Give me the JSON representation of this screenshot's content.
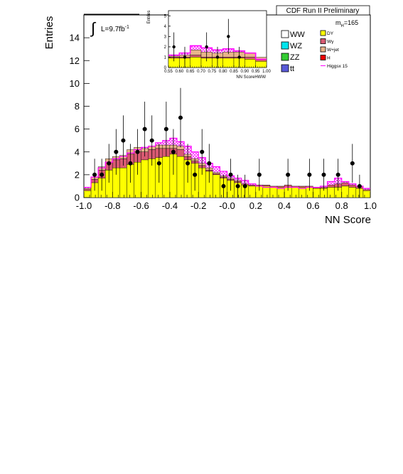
{
  "main_plot": {
    "title": "CDF Run II Preliminary",
    "lumi": "L=9.7fb",
    "lumi_sup": "-1",
    "mass": "m",
    "mass_sub": "H",
    "mass_val": "=165"
  },
  "legend": {
    "items": [
      {
        "label": "WW",
        "color": "#ffffff",
        "col": 0
      },
      {
        "label": "WZ",
        "color": "#00e6ee",
        "col": 0
      },
      {
        "label": "ZZ",
        "color": "#33cc33",
        "col": 0
      },
      {
        "label": "tt",
        "color": "#5a5ad8",
        "col": 0
      },
      {
        "label": "DY",
        "color": "#ffff00",
        "col": 1
      },
      {
        "label": "Wγ",
        "color": "#d85a72",
        "col": 1
      },
      {
        "label": "W+jet",
        "color": "#e8b48a",
        "col": 1
      },
      {
        "label": "H",
        "color": "#ee0000",
        "col": 1
      },
      {
        "label": "Higgsx 15",
        "color": "#ff00ff",
        "col": 1,
        "line": true
      }
    ]
  },
  "colors": {
    "dy": "#ffff00",
    "wgamma": "#d85a72",
    "wjet": "#e8b48a",
    "signal": "#ff00ff",
    "data": "#000000"
  },
  "chart_data": [
    {
      "type": "bar",
      "title": "CDF Run II Preliminary",
      "xlabel": "NN Score",
      "ylabel": "Entries",
      "xlim": [
        -1.0,
        1.0
      ],
      "ylim": [
        0,
        16
      ],
      "xticks": [
        "-1.0",
        "-0.8",
        "-0.6",
        "-0.4",
        "-0.2",
        "-0.0",
        "0.2",
        "0.4",
        "0.6",
        "0.8",
        "1.0"
      ],
      "yticks": [
        "0",
        "2",
        "4",
        "6",
        "8",
        "10",
        "12",
        "14"
      ],
      "bin_edges_start": -1.0,
      "bin_width": 0.05,
      "series": [
        {
          "name": "DY",
          "values": [
            0.6,
            1.3,
            1.7,
            2.4,
            2.6,
            2.6,
            2.9,
            3.1,
            3.3,
            3.4,
            3.5,
            3.6,
            3.8,
            3.6,
            3.3,
            3.0,
            2.6,
            2.3,
            2.0,
            1.7,
            1.5,
            1.3,
            1.1,
            1.0,
            1.0,
            1.0,
            0.9,
            0.9,
            0.9,
            0.9,
            0.9,
            0.9,
            0.8,
            0.8,
            0.9,
            0.9,
            1.0,
            0.9,
            0.8,
            0.6
          ]
        },
        {
          "name": "Wγ",
          "values": [
            0.1,
            0.3,
            0.7,
            0.7,
            0.7,
            0.8,
            0.9,
            0.9,
            0.7,
            0.8,
            0.8,
            0.7,
            0.5,
            0.6,
            0.3,
            0.2,
            0.2,
            0.1,
            0.1,
            0.1,
            0.1,
            0.1,
            0.1,
            0.1,
            0.1,
            0.1,
            0.1,
            0.1,
            0.2,
            0.1,
            0.1,
            0.1,
            0.1,
            0.1,
            0.2,
            0.3,
            0.3,
            0.2,
            0.2,
            0.1
          ]
        },
        {
          "name": "W+jet",
          "values": [
            0.1,
            0.2,
            0.3,
            0.3,
            0.3,
            0.3,
            0.4,
            0.4,
            0.3,
            0.3,
            0.3,
            0.3,
            0.3,
            0.3,
            0.2,
            0.2,
            0.2,
            0.2,
            0.1,
            0.1,
            0.1,
            0.1,
            0.0,
            0.0,
            0.0,
            0.0,
            0.0,
            0.0,
            0.0,
            0.0,
            0.0,
            0.0,
            0.0,
            0.0,
            0.0,
            0.0,
            0.0,
            0.0,
            0.0,
            0.0
          ]
        },
        {
          "name": "Higgsx 15",
          "values": [
            0.9,
            1.8,
            2.6,
            3.1,
            3.4,
            3.6,
            3.9,
            4.2,
            4.4,
            4.5,
            4.8,
            5.0,
            5.2,
            4.9,
            4.5,
            4.0,
            3.5,
            3.0,
            2.7,
            2.3,
            1.9,
            1.7,
            1.5,
            1.2,
            1.0,
            0.9,
            0.9,
            0.8,
            0.9,
            0.9,
            0.8,
            0.9,
            0.9,
            1.0,
            1.4,
            1.7,
            1.4,
            1.2,
            1.0,
            0.8
          ]
        }
      ],
      "data_points": [
        {
          "x": -0.925,
          "y": 2,
          "err": 1.4
        },
        {
          "x": -0.875,
          "y": 2,
          "err": 1.4
        },
        {
          "x": -0.825,
          "y": 3,
          "err": 1.7
        },
        {
          "x": -0.775,
          "y": 4,
          "err": 2.0
        },
        {
          "x": -0.725,
          "y": 5,
          "err": 2.2
        },
        {
          "x": -0.675,
          "y": 3,
          "err": 1.7
        },
        {
          "x": -0.625,
          "y": 4,
          "err": 2.0
        },
        {
          "x": -0.575,
          "y": 6,
          "err": 2.4
        },
        {
          "x": -0.525,
          "y": 5,
          "err": 2.2
        },
        {
          "x": -0.475,
          "y": 3,
          "err": 1.7
        },
        {
          "x": -0.425,
          "y": 6,
          "err": 2.4
        },
        {
          "x": -0.375,
          "y": 4,
          "err": 2.0
        },
        {
          "x": -0.325,
          "y": 7,
          "err": 2.6
        },
        {
          "x": -0.275,
          "y": 3,
          "err": 1.7
        },
        {
          "x": -0.225,
          "y": 2,
          "err": 1.4
        },
        {
          "x": -0.175,
          "y": 4,
          "err": 2.0
        },
        {
          "x": -0.125,
          "y": 3,
          "err": 1.7
        },
        {
          "x": -0.025,
          "y": 1,
          "err": 1.0
        },
        {
          "x": 0.025,
          "y": 2,
          "err": 1.4
        },
        {
          "x": 0.075,
          "y": 1,
          "err": 1.0
        },
        {
          "x": 0.125,
          "y": 1,
          "err": 1.0
        },
        {
          "x": 0.225,
          "y": 2,
          "err": 1.4
        },
        {
          "x": 0.425,
          "y": 2,
          "err": 1.4
        },
        {
          "x": 0.575,
          "y": 2,
          "err": 1.4
        },
        {
          "x": 0.675,
          "y": 2,
          "err": 1.4
        },
        {
          "x": 0.775,
          "y": 2,
          "err": 1.4
        },
        {
          "x": 0.875,
          "y": 3,
          "err": 1.7
        },
        {
          "x": 0.925,
          "y": 1,
          "err": 1.0
        }
      ]
    },
    {
      "type": "bar",
      "title": "",
      "xlabel": "NN ScoreHWW",
      "ylabel": "Entries",
      "xlim": [
        0.55,
        1.0
      ],
      "ylim": [
        0,
        5.5
      ],
      "xticks": [
        "0.55",
        "0.60",
        "0.65",
        "0.70",
        "0.75",
        "0.80",
        "0.85",
        "0.90",
        "0.95",
        "1.00"
      ],
      "yticks": [
        "0",
        "1",
        "2",
        "3",
        "4",
        "5"
      ],
      "bin_edges_start": 0.55,
      "bin_width": 0.05,
      "series": [
        {
          "name": "DY",
          "values": [
            0.9,
            0.9,
            1.0,
            0.9,
            0.9,
            0.9,
            0.9,
            0.8,
            0.6
          ]
        },
        {
          "name": "Wγ",
          "values": [
            0.1,
            0.1,
            0.2,
            0.1,
            0.1,
            0.1,
            0.1,
            0.2,
            0.2
          ]
        },
        {
          "name": "W+jet",
          "values": [
            0.1,
            0.2,
            0.5,
            0.5,
            0.4,
            0.5,
            0.5,
            0.4,
            0.2
          ]
        },
        {
          "name": "Higgsx 15",
          "values": [
            1.2,
            1.4,
            2.1,
            1.9,
            1.7,
            1.8,
            1.6,
            1.4,
            0.8
          ]
        }
      ],
      "data_points": [
        {
          "x": 0.575,
          "y": 2,
          "err": 1.4
        },
        {
          "x": 0.625,
          "y": 1,
          "err": 1.0
        },
        {
          "x": 0.725,
          "y": 2,
          "err": 1.4
        },
        {
          "x": 0.775,
          "y": 1,
          "err": 1.0
        },
        {
          "x": 0.825,
          "y": 3,
          "err": 1.7
        },
        {
          "x": 0.875,
          "y": 1,
          "err": 1.0
        }
      ]
    }
  ]
}
